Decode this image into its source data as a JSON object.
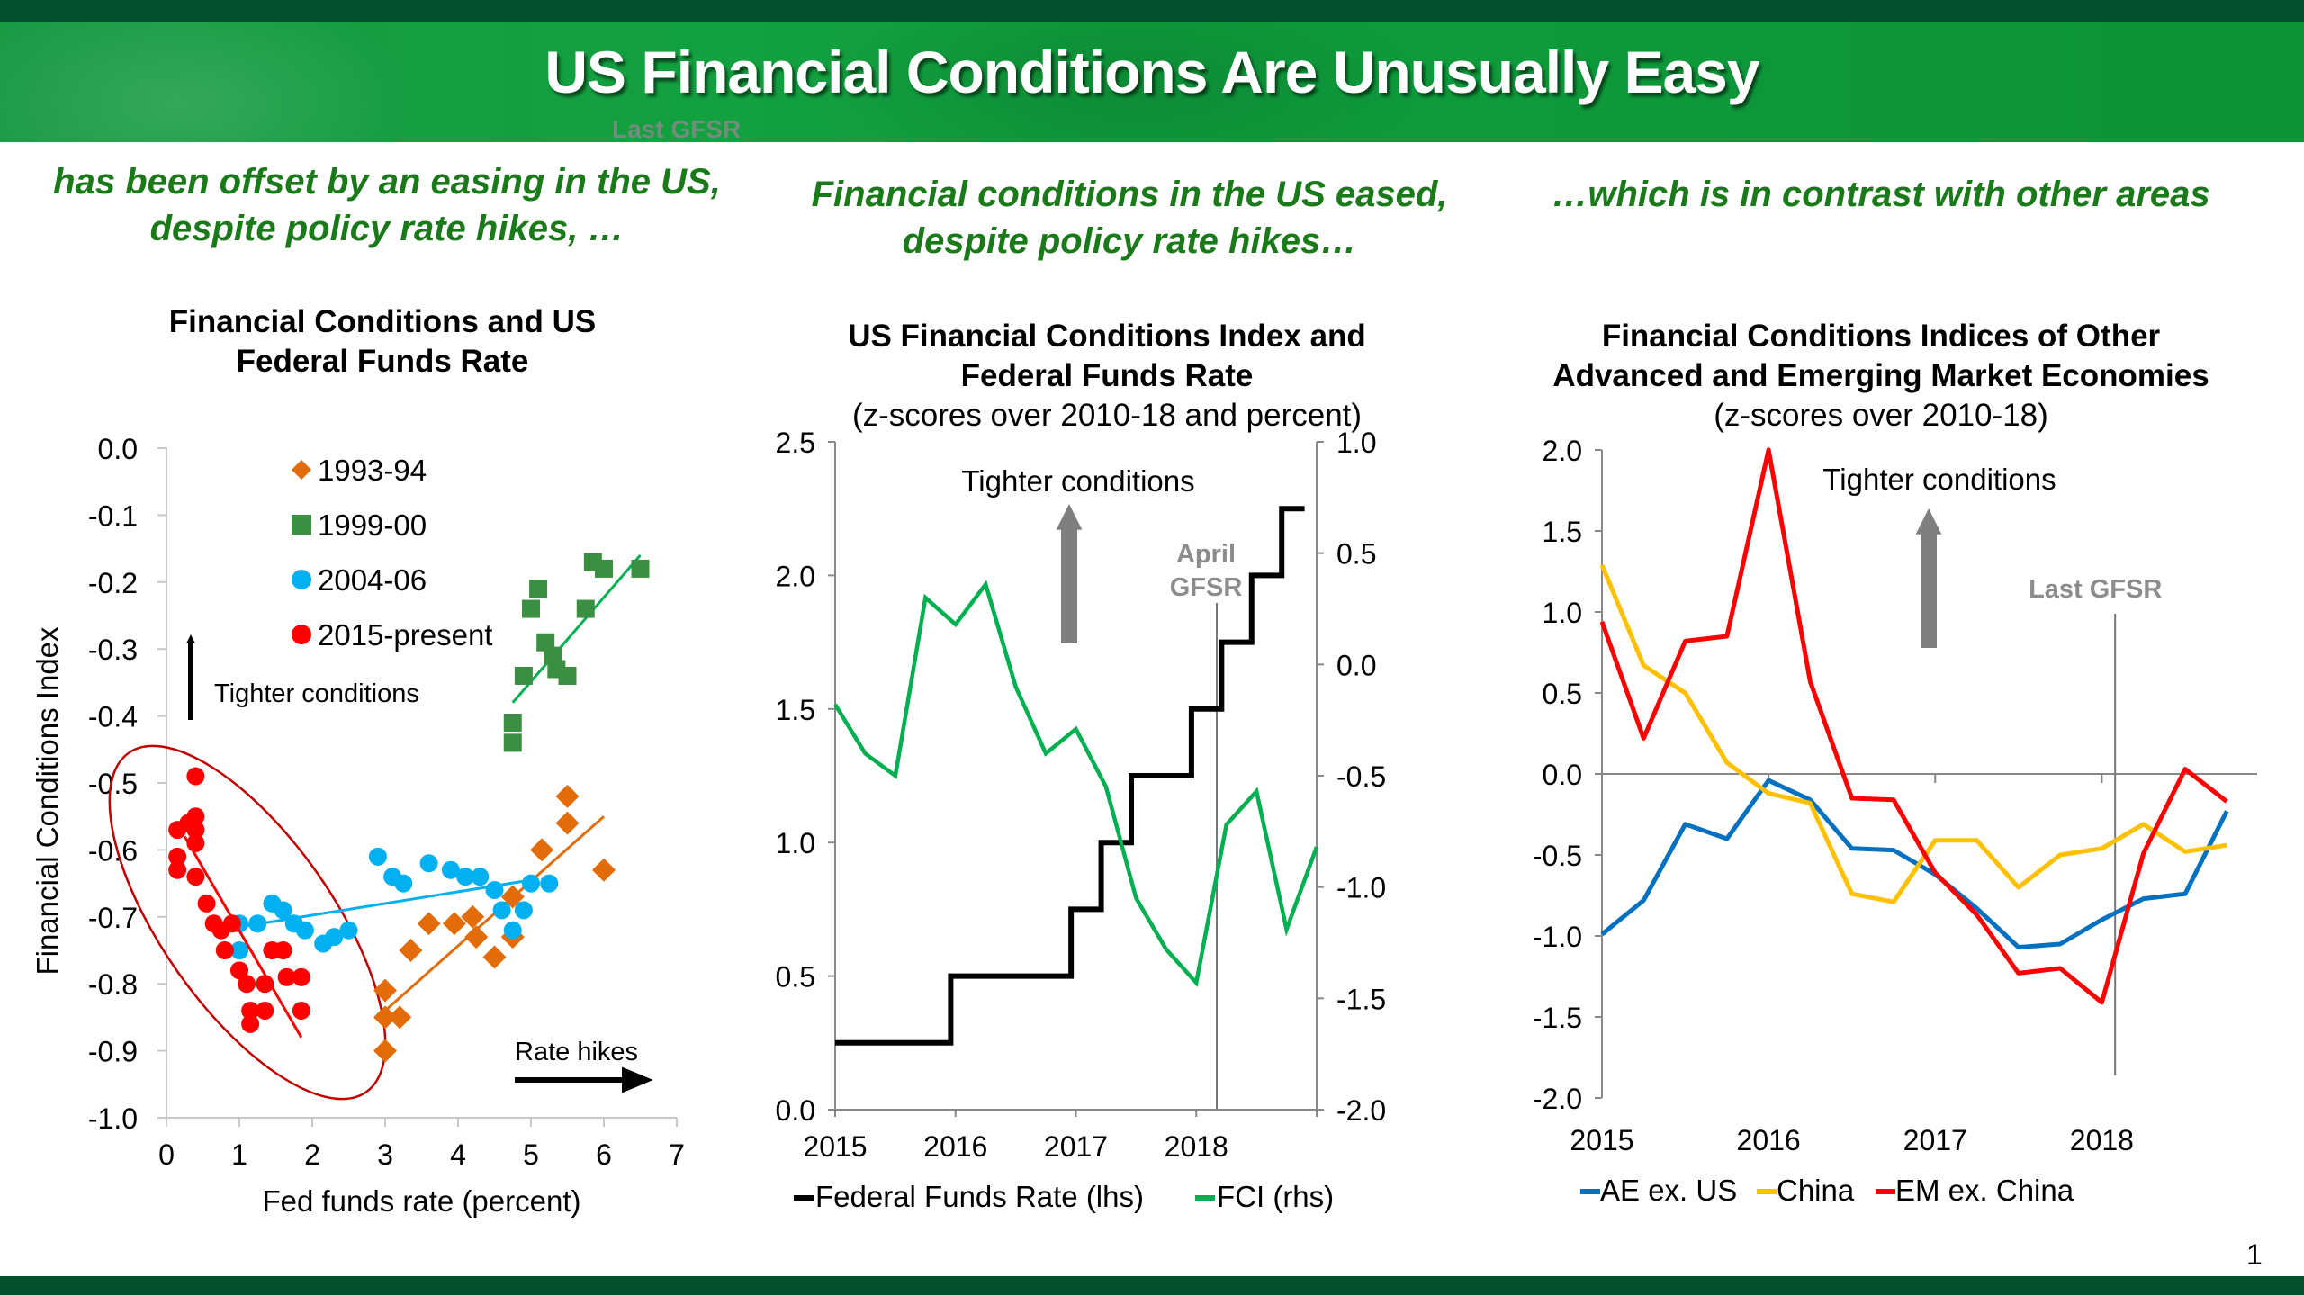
{
  "slide": {
    "title": "US Financial Conditions Are Unusually Easy",
    "ghost_label": "Last GFSR",
    "page_number": "1",
    "colors": {
      "banner": "#13a040",
      "bars": "#03502f",
      "subhead": "#1a7a1a"
    }
  },
  "subheads": [
    {
      "line1": "has been offset by an easing in the US,",
      "line2": "despite policy rate hikes, …"
    },
    {
      "line1": "Financial conditions in the US eased,",
      "line2": "despite policy rate hikes…"
    },
    {
      "line1": "…which is in contrast with other areas",
      "line2": ""
    }
  ],
  "chart_titles": [
    {
      "line1": "Financial Conditions and US",
      "line2": "Federal Funds Rate",
      "subtitle": ""
    },
    {
      "line1": "US Financial Conditions Index and",
      "line2": "Federal Funds Rate",
      "subtitle": "(z-scores over 2010-18 and percent)"
    },
    {
      "line1": "Financial Conditions Indices of Other",
      "line2": "Advanced and Emerging Market Economies",
      "subtitle": "(z-scores over 2010-18)"
    }
  ],
  "chart_data": [
    {
      "type": "scatter",
      "title": "Financial Conditions and US Federal Funds Rate",
      "xlabel": "Fed funds rate (percent)",
      "ylabel": "Financial Conditions Index",
      "xlim": [
        0,
        7
      ],
      "ylim": [
        -1.0,
        0.0
      ],
      "xticks": [
        "0",
        "1",
        "2",
        "3",
        "4",
        "5",
        "6",
        "7"
      ],
      "yticks": [
        "0.0",
        "-0.1",
        "-0.2",
        "-0.3",
        "-0.4",
        "-0.5",
        "-0.6",
        "-0.7",
        "-0.8",
        "-0.9",
        "-1.0"
      ],
      "legend_position": "top-center",
      "annotations": {
        "tighter": "Tighter conditions",
        "hikes": "Rate hikes"
      },
      "series": [
        {
          "name": "1993-94",
          "marker": "diamond",
          "color": "#e36c0a",
          "points": [
            [
              3.0,
              -0.81
            ],
            [
              3.0,
              -0.85
            ],
            [
              3.0,
              -0.9
            ],
            [
              3.2,
              -0.85
            ],
            [
              3.35,
              -0.75
            ],
            [
              3.6,
              -0.71
            ],
            [
              3.95,
              -0.71
            ],
            [
              4.2,
              -0.7
            ],
            [
              4.25,
              -0.73
            ],
            [
              4.5,
              -0.76
            ],
            [
              4.75,
              -0.67
            ],
            [
              4.75,
              -0.73
            ],
            [
              5.15,
              -0.6
            ],
            [
              5.5,
              -0.52
            ],
            [
              5.5,
              -0.56
            ],
            [
              6.0,
              -0.63
            ]
          ],
          "trend": [
            [
              3.0,
              -0.84
            ],
            [
              6.0,
              -0.55
            ]
          ]
        },
        {
          "name": "1999-00",
          "marker": "square",
          "color": "#3a8f42",
          "points": [
            [
              4.75,
              -0.41
            ],
            [
              4.75,
              -0.44
            ],
            [
              4.9,
              -0.34
            ],
            [
              5.0,
              -0.24
            ],
            [
              5.1,
              -0.21
            ],
            [
              5.2,
              -0.29
            ],
            [
              5.3,
              -0.31
            ],
            [
              5.35,
              -0.33
            ],
            [
              5.5,
              -0.34
            ],
            [
              5.75,
              -0.24
            ],
            [
              5.85,
              -0.17
            ],
            [
              6.0,
              -0.18
            ],
            [
              6.5,
              -0.18
            ]
          ],
          "trend": [
            [
              4.75,
              -0.38
            ],
            [
              6.5,
              -0.16
            ]
          ]
        },
        {
          "name": "2004-06",
          "marker": "circle",
          "color": "#00b0f0",
          "points": [
            [
              1.0,
              -0.71
            ],
            [
              1.0,
              -0.75
            ],
            [
              1.25,
              -0.71
            ],
            [
              1.45,
              -0.68
            ],
            [
              1.6,
              -0.69
            ],
            [
              1.75,
              -0.71
            ],
            [
              1.9,
              -0.72
            ],
            [
              2.15,
              -0.74
            ],
            [
              2.3,
              -0.73
            ],
            [
              2.5,
              -0.72
            ],
            [
              2.9,
              -0.61
            ],
            [
              3.1,
              -0.64
            ],
            [
              3.25,
              -0.65
            ],
            [
              3.6,
              -0.62
            ],
            [
              3.9,
              -0.63
            ],
            [
              4.1,
              -0.64
            ],
            [
              4.3,
              -0.64
            ],
            [
              4.5,
              -0.66
            ],
            [
              4.6,
              -0.69
            ],
            [
              4.75,
              -0.72
            ],
            [
              4.9,
              -0.69
            ],
            [
              5.0,
              -0.65
            ],
            [
              5.25,
              -0.65
            ]
          ],
          "trend": [
            [
              1.0,
              -0.715
            ],
            [
              5.0,
              -0.645
            ]
          ]
        },
        {
          "name": "2015-present",
          "marker": "circle",
          "color": "#ff0000",
          "points": [
            [
              0.4,
              -0.49
            ],
            [
              0.15,
              -0.57
            ],
            [
              0.3,
              -0.56
            ],
            [
              0.4,
              -0.55
            ],
            [
              0.4,
              -0.57
            ],
            [
              0.4,
              -0.59
            ],
            [
              0.15,
              -0.61
            ],
            [
              0.15,
              -0.63
            ],
            [
              0.4,
              -0.64
            ],
            [
              0.55,
              -0.68
            ],
            [
              0.65,
              -0.71
            ],
            [
              0.75,
              -0.72
            ],
            [
              0.9,
              -0.71
            ],
            [
              0.8,
              -0.75
            ],
            [
              1.0,
              -0.78
            ],
            [
              1.1,
              -0.8
            ],
            [
              1.35,
              -0.8
            ],
            [
              1.45,
              -0.75
            ],
            [
              1.6,
              -0.75
            ],
            [
              1.65,
              -0.79
            ],
            [
              1.85,
              -0.79
            ],
            [
              1.15,
              -0.84
            ],
            [
              1.35,
              -0.84
            ],
            [
              1.85,
              -0.84
            ],
            [
              1.15,
              -0.86
            ]
          ],
          "trend": [
            [
              0.25,
              -0.58
            ],
            [
              1.85,
              -0.88
            ]
          ]
        }
      ]
    },
    {
      "type": "line",
      "title": "US Financial Conditions Index and Federal Funds Rate",
      "subtitle": "(z-scores over 2010-18 and percent)",
      "x_label_ticks": [
        "2015",
        "2016",
        "2017",
        "2018"
      ],
      "xlim": [
        2015.0,
        2019.0
      ],
      "ylim_left": [
        0.0,
        2.5
      ],
      "ylim_right": [
        -2.0,
        1.0
      ],
      "yticks_left": [
        "0.0",
        "0.5",
        "1.0",
        "1.5",
        "2.0",
        "2.5"
      ],
      "yticks_right": [
        "-2.0",
        "-1.5",
        "-1.0",
        "-0.5",
        "0.0",
        "0.5",
        "1.0"
      ],
      "annotations": {
        "tighter": "Tighter conditions",
        "gfsr_line1": "April",
        "gfsr_line2": "GFSR",
        "gfsr_x": 2018.17
      },
      "series": [
        {
          "name": "Federal Funds Rate (lhs)",
          "axis": "left",
          "color": "#000000",
          "step": true,
          "x": [
            2015.0,
            2015.96,
            2016.96,
            2017.21,
            2017.46,
            2017.96,
            2018.21,
            2018.46,
            2018.71,
            2018.9
          ],
          "values": [
            0.25,
            0.5,
            0.75,
            1.0,
            1.25,
            1.5,
            1.75,
            2.0,
            2.25,
            2.25
          ]
        },
        {
          "name": "FCI (rhs)",
          "axis": "right",
          "color": "#00b050",
          "x": [
            2015.0,
            2015.25,
            2015.5,
            2015.75,
            2016.0,
            2016.25,
            2016.5,
            2016.75,
            2017.0,
            2017.25,
            2017.5,
            2017.75,
            2018.0,
            2018.25,
            2018.5,
            2018.75,
            2019.0
          ],
          "values": [
            -0.18,
            -0.4,
            -0.5,
            0.3,
            0.18,
            0.36,
            -0.1,
            -0.4,
            -0.29,
            -0.55,
            -1.05,
            -1.28,
            -1.43,
            -0.72,
            -0.57,
            -1.19,
            -0.82
          ]
        }
      ]
    },
    {
      "type": "line",
      "title": "Financial Conditions Indices of Other Advanced and Emerging Market Economies",
      "subtitle": "(z-scores over 2010-18)",
      "x_label_ticks": [
        "2015",
        "2016",
        "2017",
        "2018"
      ],
      "xlim": [
        2015.0,
        2018.9
      ],
      "ylim": [
        -2.0,
        2.0
      ],
      "yticks": [
        "2.0",
        "1.5",
        "1.0",
        "0.5",
        "0.0",
        "-0.5",
        "-1.0",
        "-1.5",
        "-2.0"
      ],
      "annotations": {
        "tighter": "Tighter conditions",
        "gfsr": "Last GFSR",
        "gfsr_x": 2018.08
      },
      "series": [
        {
          "name": "AE ex. US",
          "color": "#0070c0",
          "x": [
            2015.0,
            2015.25,
            2015.5,
            2015.75,
            2016.0,
            2016.25,
            2016.5,
            2016.75,
            2017.0,
            2017.25,
            2017.5,
            2017.75,
            2018.0,
            2018.25,
            2018.5,
            2018.75
          ],
          "values": [
            -0.99,
            -0.78,
            -0.31,
            -0.4,
            -0.04,
            -0.16,
            -0.46,
            -0.47,
            -0.62,
            -0.83,
            -1.07,
            -1.05,
            -0.9,
            -0.77,
            -0.74,
            -0.23
          ]
        },
        {
          "name": "China",
          "color": "#ffc000",
          "x": [
            2015.0,
            2015.25,
            2015.5,
            2015.75,
            2016.0,
            2016.25,
            2016.5,
            2016.75,
            2017.0,
            2017.25,
            2017.5,
            2017.75,
            2018.0,
            2018.25,
            2018.5,
            2018.75
          ],
          "values": [
            1.29,
            0.67,
            0.5,
            0.07,
            -0.12,
            -0.18,
            -0.74,
            -0.79,
            -0.41,
            -0.41,
            -0.7,
            -0.5,
            -0.46,
            -0.31,
            -0.48,
            -0.44
          ]
        },
        {
          "name": "EM ex. China",
          "color": "#ff0000",
          "x": [
            2015.0,
            2015.25,
            2015.5,
            2015.75,
            2016.0,
            2016.25,
            2016.5,
            2016.75,
            2017.0,
            2017.25,
            2017.5,
            2017.75,
            2018.0,
            2018.25,
            2018.5,
            2018.75
          ],
          "values": [
            0.94,
            0.22,
            0.82,
            0.85,
            2.0,
            0.57,
            -0.15,
            -0.16,
            -0.61,
            -0.87,
            -1.23,
            -1.2,
            -1.41,
            -0.49,
            0.03,
            -0.17
          ]
        }
      ]
    }
  ]
}
